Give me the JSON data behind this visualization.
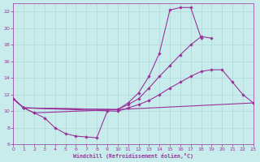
{
  "xlabel": "Windchill (Refroidissement éolien,°C)",
  "xlim": [
    0,
    23
  ],
  "ylim": [
    6,
    23
  ],
  "xticks": [
    0,
    1,
    2,
    3,
    4,
    5,
    6,
    7,
    8,
    9,
    10,
    11,
    12,
    13,
    14,
    15,
    16,
    17,
    18,
    19,
    20,
    21,
    22,
    23
  ],
  "yticks": [
    6,
    8,
    10,
    12,
    14,
    16,
    18,
    20,
    22
  ],
  "bg_color": "#c8ecec",
  "grid_color": "#b0d8d8",
  "line_color": "#993399",
  "line_width": 0.8,
  "marker_size": 2.2,
  "lines": [
    {
      "x": [
        0,
        1,
        2,
        3,
        4,
        5,
        6,
        7,
        8,
        9
      ],
      "y": [
        11.5,
        10.4,
        9.8,
        9.2,
        8.0,
        7.3,
        7.0,
        6.9,
        6.8,
        10.0
      ]
    },
    {
      "x": [
        0,
        1,
        2,
        10,
        11,
        12,
        13,
        14,
        15,
        16,
        17,
        18
      ],
      "y": [
        11.5,
        10.4,
        9.8,
        10.2,
        11.0,
        12.2,
        14.2,
        17.0,
        22.2,
        22.5,
        22.5,
        18.8
      ]
    },
    {
      "x": [
        0,
        1,
        10,
        11,
        12,
        13,
        14,
        15,
        16,
        17,
        18,
        19
      ],
      "y": [
        11.5,
        10.4,
        10.2,
        10.8,
        11.5,
        12.8,
        14.2,
        15.5,
        16.8,
        18.0,
        19.0,
        18.8
      ]
    },
    {
      "x": [
        0,
        1,
        10,
        11,
        12,
        13,
        14,
        15,
        16,
        17,
        18,
        19,
        20,
        21,
        22,
        23
      ],
      "y": [
        11.5,
        10.4,
        10.0,
        10.4,
        10.8,
        11.3,
        12.0,
        12.8,
        13.5,
        14.2,
        14.8,
        15.0,
        15.0,
        13.5,
        12.0,
        11.0
      ]
    },
    {
      "x": [
        0,
        1,
        10,
        23
      ],
      "y": [
        11.5,
        10.4,
        10.2,
        11.0
      ]
    }
  ]
}
